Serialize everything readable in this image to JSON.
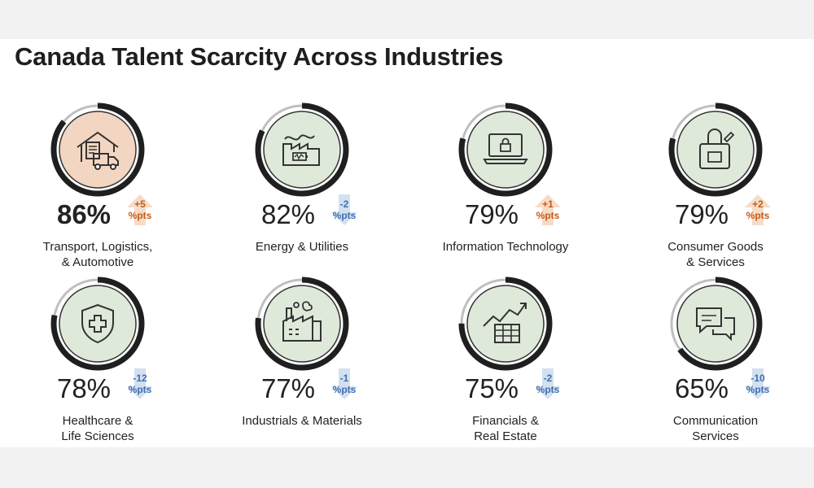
{
  "title": "Canada Talent Scarcity Across Industries",
  "colors": {
    "ring_track": "#bfbfbf",
    "ring_fill": "#1f1f1f",
    "circle_default": "#dfe9da",
    "circle_highlight": "#f3d6c2",
    "up": "#c65b17",
    "up_arrow": "#f6dcc8",
    "down": "#3f6fb0",
    "down_arrow": "#d3e0ef"
  },
  "chart_data": {
    "type": "radial-progress",
    "unit": "%",
    "change_unit": "%pts",
    "items": [
      {
        "industry_line1": "Transport, Logistics,",
        "industry_line2": "& Automotive",
        "value": 86,
        "value_label": "86%",
        "change": 5,
        "change_label": "+5",
        "direction": "up",
        "icon": "warehouse-truck-icon",
        "highlight": true
      },
      {
        "industry_line1": "Energy & Utilities",
        "industry_line2": "",
        "value": 82,
        "value_label": "82%",
        "change": -2,
        "change_label": "-2",
        "direction": "down",
        "icon": "energy-battery-icon",
        "highlight": false
      },
      {
        "industry_line1": "Information Technology",
        "industry_line2": "",
        "value": 79,
        "value_label": "79%",
        "change": 1,
        "change_label": "+1",
        "direction": "up",
        "icon": "laptop-lock-icon",
        "highlight": false
      },
      {
        "industry_line1": "Consumer Goods",
        "industry_line2": "& Services",
        "value": 79,
        "value_label": "79%",
        "change": 2,
        "change_label": "+2",
        "direction": "up",
        "icon": "shopping-bag-icon",
        "highlight": false
      },
      {
        "industry_line1": "Healthcare &",
        "industry_line2": "Life Sciences",
        "value": 78,
        "value_label": "78%",
        "change": -12,
        "change_label": "-12",
        "direction": "down",
        "icon": "medical-shield-icon",
        "highlight": false
      },
      {
        "industry_line1": "Industrials & Materials",
        "industry_line2": "",
        "value": 77,
        "value_label": "77%",
        "change": -1,
        "change_label": "-1",
        "direction": "down",
        "icon": "factory-icon",
        "highlight": false
      },
      {
        "industry_line1": "Financials &",
        "industry_line2": "Real Estate",
        "value": 75,
        "value_label": "75%",
        "change": -2,
        "change_label": "-2",
        "direction": "down",
        "icon": "trend-chart-icon",
        "highlight": false
      },
      {
        "industry_line1": "Communication",
        "industry_line2": "Services",
        "value": 65,
        "value_label": "65%",
        "change": -10,
        "change_label": "-10",
        "direction": "down",
        "icon": "chat-bubbles-icon",
        "highlight": false
      }
    ]
  }
}
